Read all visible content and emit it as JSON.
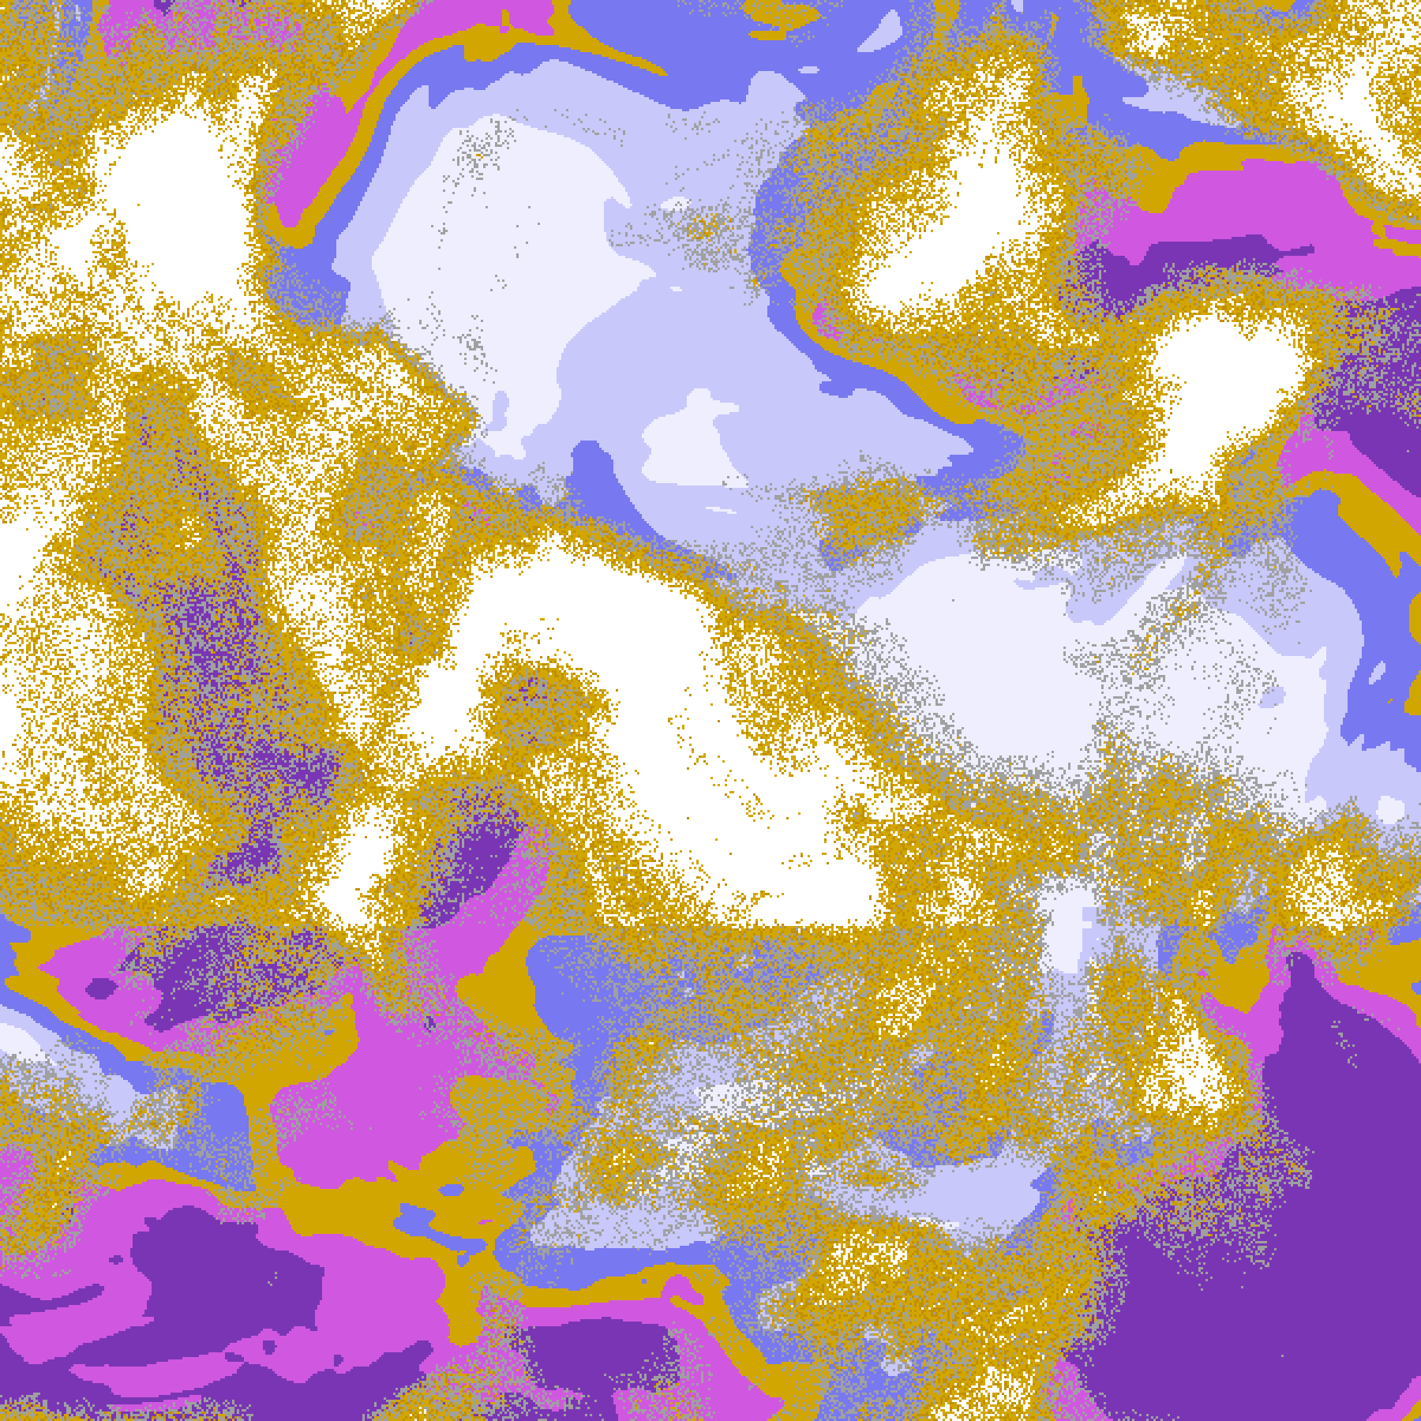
{
  "palette": {
    "clear": "#ffffff",
    "gold": "#d2a600",
    "gold_dark": "#c09000",
    "gray": "#a0a0a0",
    "purple": "#7a35b4",
    "magenta": "#d058e0",
    "blue": "#7878f0",
    "lavender": "#c8c8fa",
    "pale": "#eeeeff"
  }
}
